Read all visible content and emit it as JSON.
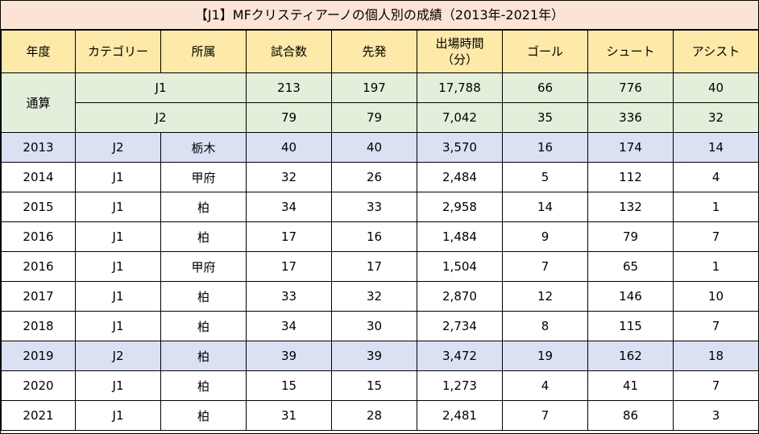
{
  "title": "【J1】MFクリスティアーノの個人別の成績（2013年-2021年）",
  "headers": {
    "year": "年度",
    "category": "カテゴリー",
    "club": "所属",
    "matches": "試合数",
    "starts": "先発",
    "minutes_line1": "出場時間",
    "minutes_line2": "（分）",
    "goals": "ゴール",
    "shots": "シュート",
    "assists": "アシスト"
  },
  "totals": {
    "label": "通算",
    "rows": [
      {
        "category": "J1",
        "matches": "213",
        "starts": "197",
        "minutes": "17,788",
        "goals": "66",
        "shots": "776",
        "assists": "40"
      },
      {
        "category": "J2",
        "matches": "79",
        "starts": "79",
        "minutes": "7,042",
        "goals": "35",
        "shots": "336",
        "assists": "32"
      }
    ]
  },
  "rows": [
    {
      "year": "2013",
      "category": "J2",
      "club": "栃木",
      "matches": "40",
      "starts": "40",
      "minutes": "3,570",
      "goals": "16",
      "shots": "174",
      "assists": "14"
    },
    {
      "year": "2014",
      "category": "J1",
      "club": "甲府",
      "matches": "32",
      "starts": "26",
      "minutes": "2,484",
      "goals": "5",
      "shots": "112",
      "assists": "4"
    },
    {
      "year": "2015",
      "category": "J1",
      "club": "柏",
      "matches": "34",
      "starts": "33",
      "minutes": "2,958",
      "goals": "14",
      "shots": "132",
      "assists": "1"
    },
    {
      "year": "2016",
      "category": "J1",
      "club": "柏",
      "matches": "17",
      "starts": "16",
      "minutes": "1,484",
      "goals": "9",
      "shots": "79",
      "assists": "7"
    },
    {
      "year": "2016",
      "category": "J1",
      "club": "甲府",
      "matches": "17",
      "starts": "17",
      "minutes": "1,504",
      "goals": "7",
      "shots": "65",
      "assists": "1"
    },
    {
      "year": "2017",
      "category": "J1",
      "club": "柏",
      "matches": "33",
      "starts": "32",
      "minutes": "2,870",
      "goals": "12",
      "shots": "146",
      "assists": "10"
    },
    {
      "year": "2018",
      "category": "J1",
      "club": "柏",
      "matches": "34",
      "starts": "30",
      "minutes": "2,734",
      "goals": "8",
      "shots": "115",
      "assists": "7"
    },
    {
      "year": "2019",
      "category": "J2",
      "club": "柏",
      "matches": "39",
      "starts": "39",
      "minutes": "3,472",
      "goals": "19",
      "shots": "162",
      "assists": "18"
    },
    {
      "year": "2020",
      "category": "J1",
      "club": "柏",
      "matches": "15",
      "starts": "15",
      "minutes": "1,273",
      "goals": "4",
      "shots": "41",
      "assists": "7"
    },
    {
      "year": "2021",
      "category": "J1",
      "club": "柏",
      "matches": "31",
      "starts": "28",
      "minutes": "2,481",
      "goals": "7",
      "shots": "86",
      "assists": "3"
    }
  ],
  "colors": {
    "title_bg": "#fbe4d5",
    "header_bg": "#fde9a8",
    "totals_bg": "#e2efda",
    "highlight_bg": "#d9e1f2"
  }
}
